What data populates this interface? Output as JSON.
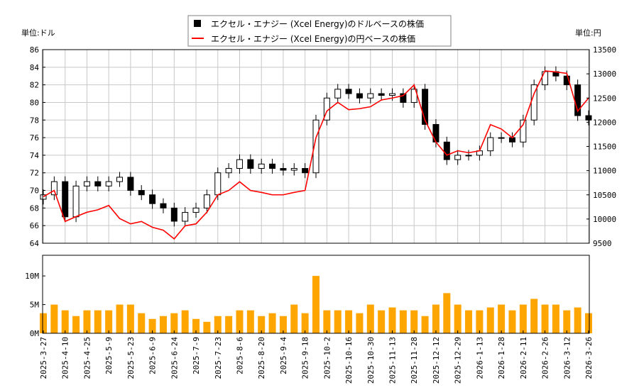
{
  "chart_data": {
    "type": "candlestick+line+bar",
    "legend": {
      "placement": "top-center",
      "entries": [
        "エクセル・エナジー (Xcel Energy)のドルベースの株価",
        "エクセル・エナジー (Xcel Energy)の円ベースの株価"
      ]
    },
    "left_unit": "単位:ドル",
    "right_unit": "単位:円",
    "left_ylim": [
      64,
      86
    ],
    "left_ticks": [
      "64",
      "66",
      "68",
      "70",
      "72",
      "74",
      "76",
      "78",
      "80",
      "82",
      "84",
      "86"
    ],
    "right_ylim": [
      9500,
      13500
    ],
    "right_ticks": [
      "9500",
      "10000",
      "10500",
      "11000",
      "11500",
      "12000",
      "12500",
      "13000",
      "13500"
    ],
    "volume_ylim": [
      0,
      13.6
    ],
    "volume_ticks": [
      "0M",
      "5M",
      "10M"
    ],
    "x_ticks": [
      "2025-3-27",
      "2025-4-10",
      "2025-4-25",
      "2025-5-9",
      "2025-5-23",
      "2025-6-9",
      "2025-6-24",
      "2025-7-9",
      "2025-7-23",
      "2025-8-6",
      "2025-8-20",
      "2025-9-4",
      "2025-9-18",
      "2025-10-2",
      "2025-10-16",
      "2025-10-30",
      "2025-11-13",
      "2025-11-28",
      "2025-12-12",
      "2025-12-29",
      "2026-1-13",
      "2026-1-28",
      "2026-2-11",
      "2026-2-26",
      "2026-3-12",
      "2026-3-26"
    ],
    "grid": true,
    "colors": {
      "up_candle": "#ffffff",
      "down_candle": "#000000",
      "yen_line": "#ff0000",
      "volume": "#ffa500",
      "grid": "#c8c8c8"
    },
    "open": [
      69,
      69.5,
      71,
      67,
      70.5,
      71,
      70.5,
      71,
      71.5,
      70,
      69.5,
      68.5,
      68,
      66.5,
      67.5,
      68,
      69.5,
      72,
      72.5,
      73.5,
      72.5,
      73,
      72.5,
      72.3,
      72.5,
      72,
      78,
      80.5,
      81.5,
      81,
      80.5,
      81,
      80.8,
      81,
      80,
      81.5,
      77.5,
      75.5,
      73.5,
      74,
      74,
      74.5,
      76,
      76,
      75.5,
      78,
      82,
      83.5,
      83,
      82,
      78.5
    ],
    "high": [
      70.1,
      71.6,
      71.6,
      71.1,
      71.6,
      71.6,
      71.6,
      72.1,
      72.1,
      70.6,
      70.1,
      69.1,
      68.6,
      68.1,
      68.6,
      70.1,
      72.6,
      73.1,
      74.1,
      74.1,
      73.6,
      73.6,
      73.1,
      73.1,
      73.1,
      78.6,
      81.1,
      82.1,
      82.1,
      81.6,
      81.6,
      81.6,
      81.6,
      81.6,
      82.1,
      82.1,
      78.1,
      76.1,
      74.6,
      74.6,
      75.1,
      76.6,
      76.6,
      76.6,
      78.6,
      82.6,
      84.1,
      84.1,
      83.6,
      82.6,
      79.1
    ],
    "low": [
      68.4,
      68.9,
      66.4,
      66.4,
      69.9,
      69.9,
      69.9,
      70.4,
      69.4,
      68.9,
      67.9,
      67.4,
      65.9,
      65.9,
      66.9,
      67.4,
      68.9,
      71.4,
      71.9,
      71.9,
      71.9,
      71.9,
      71.7,
      71.7,
      71.4,
      71.4,
      77.4,
      79.9,
      80.4,
      79.9,
      79.9,
      80.2,
      80.2,
      79.4,
      79.4,
      76.9,
      74.9,
      72.9,
      72.9,
      73.4,
      73.4,
      73.9,
      75.4,
      74.9,
      74.9,
      77.4,
      81.4,
      82.4,
      81.4,
      77.9,
      77.4
    ],
    "close": [
      69.5,
      71,
      67,
      70.5,
      71,
      70.5,
      71,
      71.5,
      70,
      69.5,
      68.5,
      68,
      66.5,
      67.5,
      68,
      69.5,
      72,
      72.5,
      73.5,
      72.5,
      73,
      72.5,
      72.3,
      72.5,
      72,
      78,
      80.5,
      81.5,
      81,
      80.5,
      81,
      80.8,
      81,
      80,
      81.5,
      77.5,
      75.5,
      73.5,
      74,
      74,
      74.5,
      76,
      76,
      75.5,
      78,
      82,
      83.5,
      83,
      82,
      78.5,
      78
    ],
    "yen_close": [
      10460,
      10590,
      9950,
      10050,
      10140,
      10190,
      10280,
      10010,
      9900,
      9950,
      9830,
      9770,
      9590,
      9860,
      9900,
      10140,
      10500,
      10590,
      10770,
      10590,
      10550,
      10500,
      10500,
      10550,
      10590,
      11680,
      12230,
      12410,
      12260,
      12280,
      12320,
      12460,
      12500,
      12550,
      12770,
      12040,
      11590,
      11320,
      11410,
      11370,
      11410,
      11950,
      11860,
      11680,
      11950,
      12590,
      13060,
      13040,
      13010,
      12230,
      12500
    ],
    "volume_m": [
      3.5,
      5,
      4,
      3,
      4,
      4,
      4,
      5,
      5,
      3.5,
      2.5,
      3,
      3.5,
      4,
      2.5,
      2,
      3,
      3,
      4,
      4,
      3,
      3.5,
      3,
      5,
      3.5,
      10,
      4,
      4,
      4,
      3.5,
      5,
      4,
      4.5,
      4,
      4,
      3,
      5,
      7,
      5,
      4,
      4,
      4.5,
      5,
      4,
      5,
      6,
      5,
      5,
      4,
      4.5,
      3.5
    ]
  }
}
